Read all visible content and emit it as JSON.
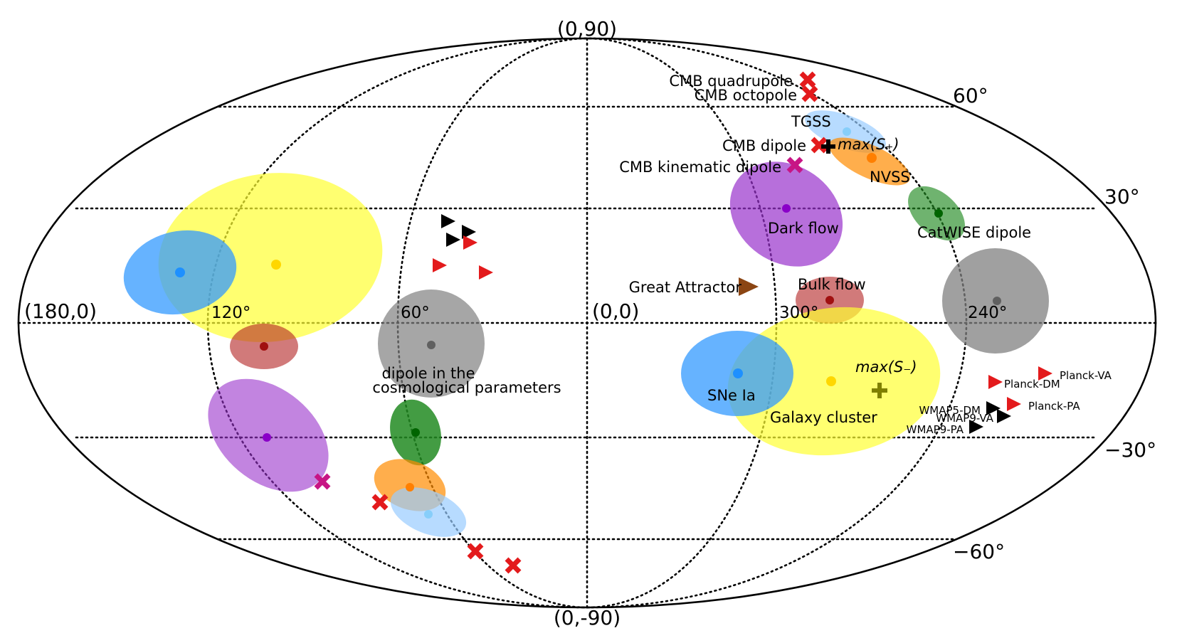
{
  "axis_labels": {
    "north_pole": "(0,90)",
    "south_pole": "(0,-90)",
    "left_edge": "(180,0)",
    "center": "(0,0)",
    "lon_120": "120°",
    "lon_60": "60°",
    "lon_300": "300°",
    "lon_240": "240°",
    "lat_60": "60°",
    "lat_30": "30°",
    "lat_m30": "−30°",
    "lat_m60": "−60°"
  },
  "labels": {
    "cmb_quadrupole": "CMB quadrupole",
    "cmb_octopole": "CMB octopole",
    "tgss": "TGSS",
    "cmb_dipole": "CMB dipole",
    "max_s_plus": "max(S₊)",
    "cmb_kinematic_dipole": "CMB kinematic dipole",
    "nvss": "NVSS",
    "dark_flow": "Dark flow",
    "catwise_dipole": "CatWISE dipole",
    "great_attractor": "Great Attractor",
    "bulk_flow": "Bulk flow",
    "sne_ia": "SNe Ia",
    "max_s_minus": "max(S₋)",
    "galaxy_cluster": "Galaxy cluster",
    "cosmo_dipole_line1": "dipole in the",
    "cosmo_dipole_line2": "cosmological parameters",
    "planck_va": "Planck-VA",
    "planck_dm": "Planck-DM",
    "planck_pa": "Planck-PA",
    "wmap5_dm": "WMAP5-DM",
    "wmap9_va": "WMAP9-VA",
    "wmap9_pa": "WMAP9-PA"
  },
  "colors": {
    "yellow": "#ffff33",
    "blue": "#3399ff",
    "light_blue": "#99ccff",
    "green": "#228b22",
    "orange": "#ff8c00",
    "purple": "#9932cc",
    "brown_red": "#b22222",
    "gray": "#808080",
    "red_marker": "#e31a1c",
    "black_marker": "#000000",
    "great_attractor": "#8b4513",
    "olive": "#808000"
  }
}
